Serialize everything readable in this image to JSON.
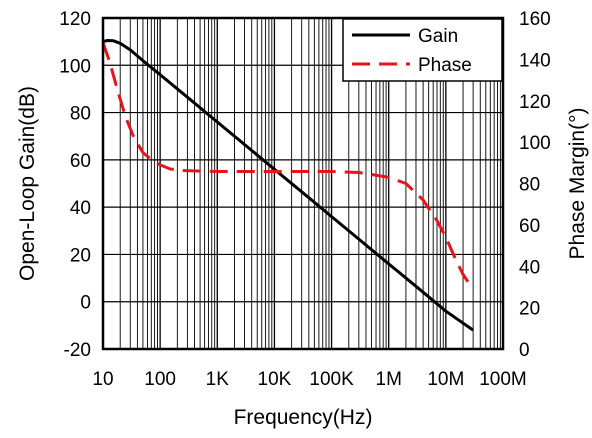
{
  "chart_data": {
    "type": "line",
    "xlabel": "Frequency(Hz)",
    "ylabel_left": "Open-Loop Gain(dB)",
    "ylabel_right": "Phase Margin(°)",
    "x_scale": "log",
    "xlim": [
      10,
      100000000
    ],
    "ylim_left": [
      -20,
      120
    ],
    "ylim_right": [
      0,
      160
    ],
    "x_ticks": [
      {
        "value": 10,
        "label": "10"
      },
      {
        "value": 100,
        "label": "100"
      },
      {
        "value": 1000,
        "label": "1K"
      },
      {
        "value": 10000,
        "label": "10K"
      },
      {
        "value": 100000,
        "label": "100K"
      },
      {
        "value": 1000000,
        "label": "1M"
      },
      {
        "value": 10000000,
        "label": "10M"
      },
      {
        "value": 100000000,
        "label": "100M"
      }
    ],
    "y_ticks_left": [
      "-20",
      "0",
      "20",
      "40",
      "60",
      "80",
      "100",
      "120"
    ],
    "y_ticks_right": [
      "0",
      "20",
      "40",
      "60",
      "80",
      "100",
      "120",
      "140",
      "160"
    ],
    "grid": true,
    "legend_position": "top-right",
    "series": [
      {
        "name": "Gain",
        "axis": "left",
        "color": "#000000",
        "dash": "solid",
        "points": [
          [
            10,
            110
          ],
          [
            12,
            110.5
          ],
          [
            15,
            110.4
          ],
          [
            20,
            109.3
          ],
          [
            30,
            106.5
          ],
          [
            50,
            102
          ],
          [
            100,
            96
          ],
          [
            300,
            86.5
          ],
          [
            1000,
            76
          ],
          [
            3000,
            66.5
          ],
          [
            10000,
            56
          ],
          [
            30000,
            46.5
          ],
          [
            100000,
            36
          ],
          [
            300000,
            26.5
          ],
          [
            1000000,
            16
          ],
          [
            3000000,
            6.5
          ],
          [
            10000000,
            -4
          ],
          [
            30000000,
            -12
          ]
        ]
      },
      {
        "name": "Phase",
        "axis": "right",
        "color": "#e8141c",
        "dash": "dashed",
        "points": [
          [
            10,
            148
          ],
          [
            13,
            139
          ],
          [
            18,
            125
          ],
          [
            25,
            112
          ],
          [
            35,
            102
          ],
          [
            50,
            95
          ],
          [
            70,
            91.5
          ],
          [
            100,
            89
          ],
          [
            150,
            87
          ],
          [
            250,
            86.3
          ],
          [
            500,
            86
          ],
          [
            1000,
            85.8
          ],
          [
            10000,
            85.8
          ],
          [
            100000,
            85.8
          ],
          [
            300000,
            85.3
          ],
          [
            1000000,
            83
          ],
          [
            2000000,
            80
          ],
          [
            4000000,
            72
          ],
          [
            7000000,
            62
          ],
          [
            10000000,
            54
          ],
          [
            15000000,
            43
          ],
          [
            20000000,
            36
          ],
          [
            28000000,
            30
          ]
        ]
      }
    ]
  }
}
